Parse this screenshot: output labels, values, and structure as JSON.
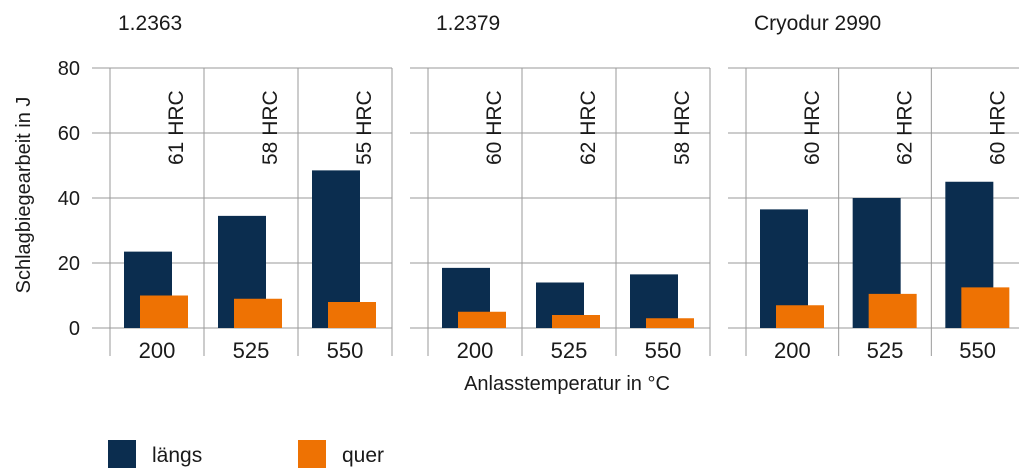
{
  "chart_data": {
    "type": "bar",
    "ylabel": "Schlagbiegearbeit in J",
    "xlabel": "Anlasstemperatur in °C",
    "ylim": [
      0,
      80
    ],
    "yticks": [
      0,
      20,
      40,
      60,
      80
    ],
    "grid": true,
    "legend_position": "bottom-left",
    "legend": [
      {
        "name": "längs",
        "color": "#0b2d4f"
      },
      {
        "name": "quer",
        "color": "#ee7203"
      }
    ],
    "panels": [
      {
        "title": "1.2363",
        "categories": [
          "200",
          "525",
          "550"
        ],
        "series": [
          {
            "name": "längs",
            "values": [
              23.5,
              34.5,
              48.5
            ]
          },
          {
            "name": "quer",
            "values": [
              10,
              9,
              8
            ]
          }
        ],
        "annotations": [
          "61 HRC",
          "58 HRC",
          "55 HRC"
        ]
      },
      {
        "title": "1.2379",
        "categories": [
          "200",
          "525",
          "550"
        ],
        "series": [
          {
            "name": "längs",
            "values": [
              18.5,
              14,
              16.5
            ]
          },
          {
            "name": "quer",
            "values": [
              5,
              4,
              3
            ]
          }
        ],
        "annotations": [
          "60 HRC",
          "62 HRC",
          "58 HRC"
        ]
      },
      {
        "title": "Cryodur 2990",
        "categories": [
          "200",
          "525",
          "550"
        ],
        "series": [
          {
            "name": "längs",
            "values": [
              36.5,
              40,
              45
            ]
          },
          {
            "name": "quer",
            "values": [
              7,
              10.5,
              12.5
            ]
          }
        ],
        "annotations": [
          "60 HRC",
          "62 HRC",
          "60 HRC"
        ]
      }
    ]
  }
}
